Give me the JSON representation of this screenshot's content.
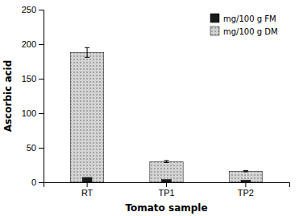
{
  "chart_data": {
    "type": "bar",
    "categories": [
      "RT",
      "TP1",
      "TP2"
    ],
    "xlabel": "Tomato sample",
    "ylabel": "Ascorbic acid",
    "ylim": [
      0,
      250
    ],
    "yticks": [
      0,
      50,
      100,
      150,
      200,
      250
    ],
    "legend": "upper right",
    "series": [
      {
        "name": "mg/100 g FM",
        "color": "#1a1a1a",
        "values": [
          7,
          4,
          3
        ]
      },
      {
        "name": "mg/100 g DM",
        "color": "#d4d4d4",
        "values": [
          188,
          30,
          16
        ],
        "errors": [
          7,
          1.5,
          0.8
        ]
      }
    ]
  }
}
